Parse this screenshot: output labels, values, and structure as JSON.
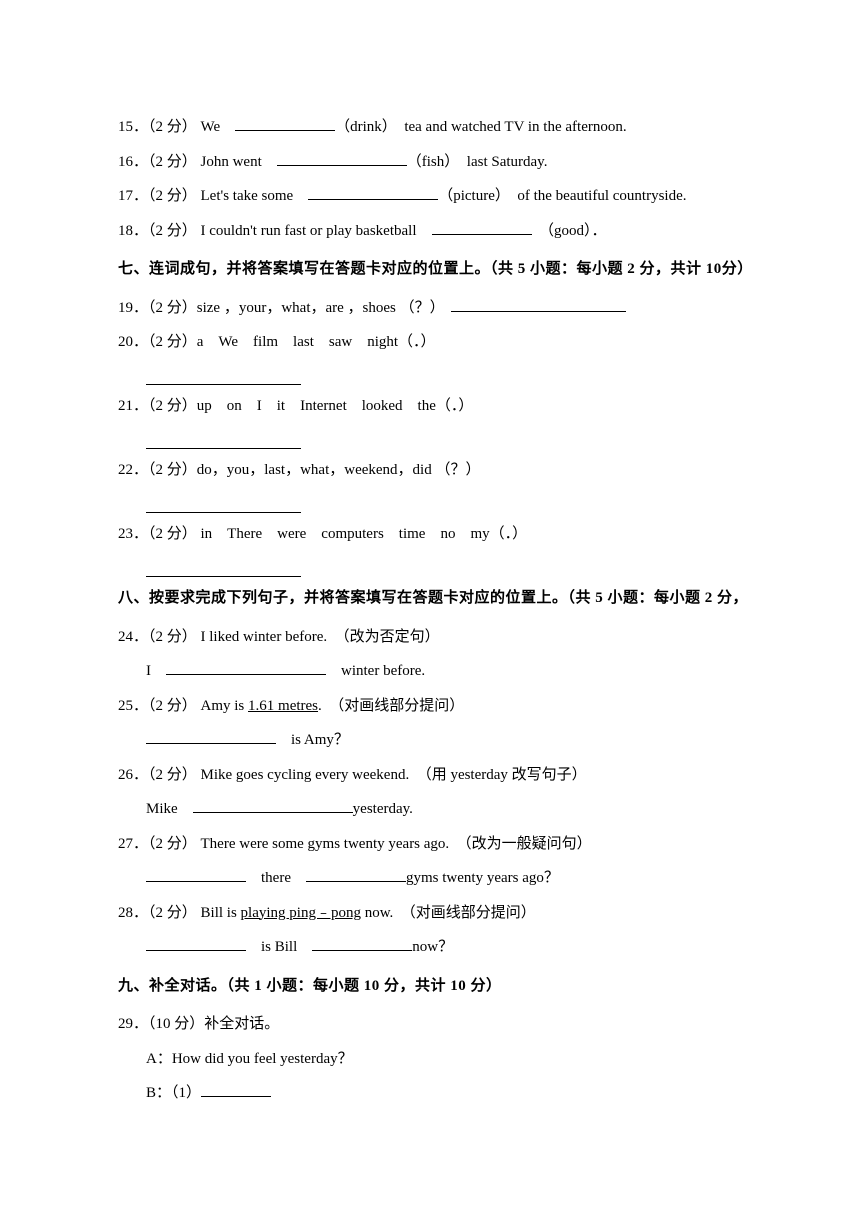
{
  "items": {
    "q15": {
      "num": "15．（2 分）",
      "pre": " We　",
      "hint": "（drink）",
      "post": "　tea and watched TV in the afternoon."
    },
    "q16": {
      "num": "16．（2 分）",
      "pre": " John went　",
      "hint": "（fish）",
      "post": "　last Saturday."
    },
    "q17": {
      "num": "17．（2 分）",
      "pre": " Let's take some　",
      "hint": "（picture）",
      "post": "　of the beautiful countryside."
    },
    "q18": {
      "num": "18．（2 分）",
      "pre": " I couldn't run fast or play basketball　",
      "hint": "　（good）．"
    },
    "q19": {
      "num": "19．（2 分）",
      "text": "size ，your，what，are ，shoes （？）"
    },
    "q20": {
      "num": "20．（2 分）",
      "text": "a　We　film　last　saw　night（．）"
    },
    "q21": {
      "num": "21．（2 分）",
      "text": "up　on　I　it　Internet　looked　the（．）"
    },
    "q22": {
      "num": "22．（2 分）",
      "text": "do，you，last，what，weekend，did （？）"
    },
    "q23": {
      "num": "23．（2 分）",
      "text": " in　There　were　computers　time　no　my（．）"
    },
    "q24": {
      "num": "24．（2 分）",
      "text": " I liked winter before.　（改为否定句）",
      "line2a": "I　",
      "line2b": "　winter before."
    },
    "q25": {
      "num": "25．（2 分）",
      "pre": " Amy is ",
      "under": "1.61 metres",
      "post": ".　（对画线部分提问）",
      "line2": "　is Amy？"
    },
    "q26": {
      "num": "26．（2 分）",
      "text": " Mike goes cycling every weekend.　（用 yesterday 改写句子）",
      "line2a": "Mike　",
      "line2b": "yesterday."
    },
    "q27": {
      "num": "27．（2 分）",
      "text": " There were some gyms twenty years ago.　（改为一般疑问句）",
      "line2a": "　there　",
      "line2b": "gyms twenty years ago？"
    },
    "q28": {
      "num": "28．（2 分）",
      "pre": " Bill is ",
      "under": "playing ping﹣pong",
      "post": " now.　（对画线部分提问）",
      "line2a": "　is Bill　",
      "line2b": "now？"
    },
    "q29": {
      "num": "29．（10 分）",
      "text": "补全对话。",
      "a": "A：How did you feel yesterday？",
      "b": "B：（1）"
    }
  },
  "sections": {
    "s7": "七、连词成句，并将答案填写在答题卡对应的位置上。（共 5 小题：每小题 2 分，共计 10分）",
    "s8": "八、按要求完成下列句子，并将答案填写在答题卡对应的位置上。（共 5 小题：每小题 2 分，",
    "s9": "九、补全对话。（共 1 小题：每小题 10 分，共计 10 分）"
  }
}
